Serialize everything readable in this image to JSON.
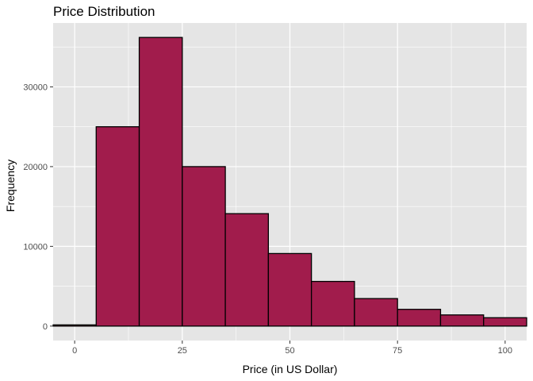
{
  "chart_data": {
    "type": "bar",
    "title": "Price Distribution",
    "xlabel": "Price (in US Dollar)",
    "ylabel": "Frequency",
    "bins": [
      {
        "start": -5,
        "end": 5,
        "count": 150
      },
      {
        "start": 5,
        "end": 15,
        "count": 25000
      },
      {
        "start": 15,
        "end": 25,
        "count": 36200
      },
      {
        "start": 25,
        "end": 35,
        "count": 20000
      },
      {
        "start": 35,
        "end": 45,
        "count": 14100
      },
      {
        "start": 45,
        "end": 55,
        "count": 9100
      },
      {
        "start": 55,
        "end": 65,
        "count": 5600
      },
      {
        "start": 65,
        "end": 75,
        "count": 3450
      },
      {
        "start": 75,
        "end": 85,
        "count": 2100
      },
      {
        "start": 85,
        "end": 95,
        "count": 1400
      },
      {
        "start": 95,
        "end": 105,
        "count": 1050
      }
    ],
    "x_ticks": [
      0,
      25,
      50,
      75,
      100
    ],
    "y_ticks": [
      0,
      10000,
      20000,
      30000
    ],
    "xlim": [
      -5,
      105
    ],
    "ylim": [
      -1810,
      38010
    ],
    "grid": true,
    "colors": {
      "bar_fill": "#A11C4C",
      "bar_stroke": "#000000",
      "panel": "#E5E5E5",
      "grid": "#FFFFFF"
    }
  }
}
